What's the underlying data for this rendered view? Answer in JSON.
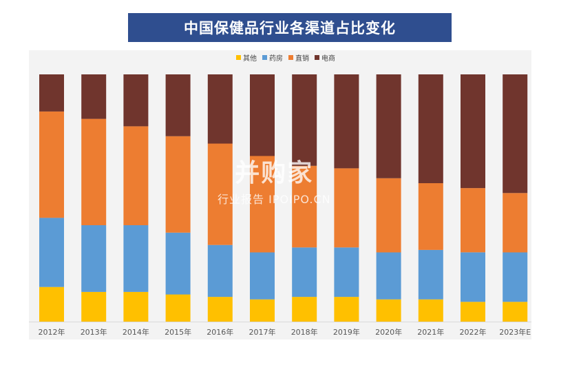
{
  "title": "中国保健品行业各渠道占比变化",
  "watermark": {
    "main": "并购家",
    "sub": "行业报告 IPOIPO.CN"
  },
  "chart_data": {
    "type": "bar",
    "stacked": true,
    "normalized": true,
    "categories": [
      "2012年",
      "2013年",
      "2014年",
      "2015年",
      "2016年",
      "2017年",
      "2018年",
      "2019年",
      "2020年",
      "2021年",
      "2022年",
      "2023年E"
    ],
    "series": [
      {
        "name": "其他",
        "color": "#ffc000",
        "values": [
          14,
          12,
          12,
          11,
          10,
          9,
          10,
          10,
          9,
          9,
          8,
          8
        ]
      },
      {
        "name": "药房",
        "color": "#5b9bd5",
        "values": [
          28,
          27,
          27,
          25,
          21,
          19,
          20,
          20,
          19,
          20,
          20,
          20
        ]
      },
      {
        "name": "直销",
        "color": "#ed7d31",
        "values": [
          43,
          43,
          40,
          39,
          41,
          39,
          33,
          32,
          30,
          27,
          26,
          24
        ]
      },
      {
        "name": "电商",
        "color": "#70352d",
        "values": [
          15,
          18,
          21,
          25,
          28,
          33,
          37,
          38,
          42,
          44,
          46,
          48
        ]
      }
    ],
    "ylim": [
      0,
      100
    ],
    "legend_position": "top-center",
    "grid": false
  }
}
